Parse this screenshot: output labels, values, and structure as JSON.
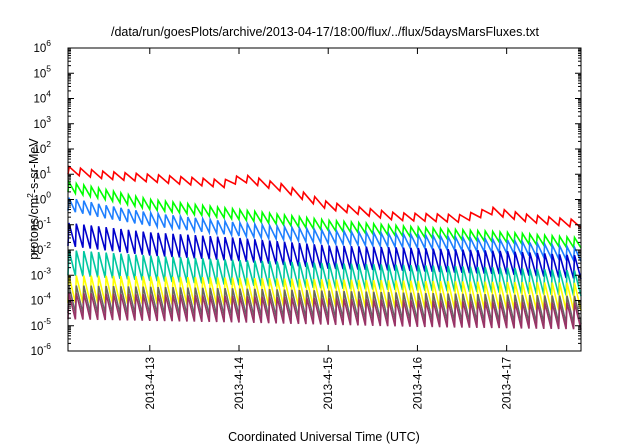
{
  "chart_data": {
    "type": "line",
    "title": "/data/run/goesPlots/archive/2013-04-17/18:00/flux/../flux/5daysMarsFluxes.txt",
    "xlabel": "Coordinated Universal Time (UTC)",
    "ylabel_parts": {
      "base": "protons/cm",
      "sup": "2",
      "rest": "-s-sr-MeV"
    },
    "yscale": "log",
    "ylim": [
      1e-06,
      1000000.0
    ],
    "xlim": [
      "2013-04-12 02:00",
      "2013-04-17 20:00"
    ],
    "grid": false,
    "legend": "none",
    "xticks": [
      {
        "label": "2013-4-13",
        "day": 1
      },
      {
        "label": "2013-4-14",
        "day": 2
      },
      {
        "label": "2013-4-15",
        "day": 3
      },
      {
        "label": "2013-4-16",
        "day": 4
      },
      {
        "label": "2013-4-17",
        "day": 5
      }
    ],
    "yticks": [
      {
        "exp": "-6",
        "value": 1e-06
      },
      {
        "exp": "-5",
        "value": 1e-05
      },
      {
        "exp": "-4",
        "value": 0.0001
      },
      {
        "exp": "-3",
        "value": 0.001
      },
      {
        "exp": "-2",
        "value": 0.01
      },
      {
        "exp": "-1",
        "value": 0.1
      },
      {
        "exp": "0",
        "value": 1
      },
      {
        "exp": "1",
        "value": 10.0
      },
      {
        "exp": "2",
        "value": 100.0
      },
      {
        "exp": "3",
        "value": 1000.0
      },
      {
        "exp": "4",
        "value": 10000.0
      },
      {
        "exp": "5",
        "value": 100000.0
      },
      {
        "exp": "6",
        "value": 1000000.0
      }
    ],
    "series": [
      {
        "color": "#ff0000",
        "sawtooth_period_hours": 3,
        "peak_trend": [
          [
            "2013-04-12 02:00",
            20
          ],
          [
            "2013-04-12 12:00",
            13
          ],
          [
            "2013-04-13 00:00",
            10
          ],
          [
            "2013-04-13 20:00",
            6
          ],
          [
            "2013-04-14 01:00",
            10
          ],
          [
            "2013-04-14 12:00",
            4
          ],
          [
            "2013-04-15 00:00",
            0.8
          ],
          [
            "2013-04-15 18:00",
            0.3
          ],
          [
            "2013-04-16 12:00",
            0.25
          ],
          [
            "2013-04-16 20:00",
            0.5
          ],
          [
            "2013-04-17 06:00",
            0.25
          ],
          [
            "2013-04-17 20:00",
            0.15
          ]
        ],
        "dip_ratio": 0.5
      },
      {
        "color": "#00ff00",
        "sawtooth_period_hours": 2,
        "peak_trend": [
          [
            "2013-04-12 02:00",
            5
          ],
          [
            "2013-04-12 12:00",
            2.5
          ],
          [
            "2013-04-13 00:00",
            1
          ],
          [
            "2013-04-14 00:00",
            0.4
          ],
          [
            "2013-04-15 00:00",
            0.15
          ],
          [
            "2013-04-16 00:00",
            0.08
          ],
          [
            "2013-04-17 00:00",
            0.05
          ],
          [
            "2013-04-17 20:00",
            0.03
          ]
        ],
        "dip_ratio": 0.4
      },
      {
        "color": "#1e7fff",
        "sawtooth_period_hours": 2,
        "peak_trend": [
          [
            "2013-04-12 02:00",
            1.2
          ],
          [
            "2013-04-12 12:00",
            0.6
          ],
          [
            "2013-04-13 00:00",
            0.3
          ],
          [
            "2013-04-14 00:00",
            0.12
          ],
          [
            "2013-04-15 00:00",
            0.06
          ],
          [
            "2013-04-16 00:00",
            0.04
          ],
          [
            "2013-04-17 00:00",
            0.025
          ],
          [
            "2013-04-17 20:00",
            0.012
          ]
        ],
        "dip_ratio": 0.3
      },
      {
        "color": "#0000cc",
        "sawtooth_period_hours": 2,
        "peak_trend": [
          [
            "2013-04-12 02:00",
            0.12
          ],
          [
            "2013-04-13 00:00",
            0.05
          ],
          [
            "2013-04-14 00:00",
            0.03
          ],
          [
            "2013-04-15 00:00",
            0.015
          ],
          [
            "2013-04-16 00:00",
            0.012
          ],
          [
            "2013-04-17 00:00",
            0.009
          ],
          [
            "2013-04-17 20:00",
            0.006
          ]
        ],
        "dip_ratio": 0.12
      },
      {
        "color": "#00c8a0",
        "sawtooth_period_hours": 2,
        "peak_trend": [
          [
            "2013-04-12 02:00",
            0.01
          ],
          [
            "2013-04-13 00:00",
            0.006
          ],
          [
            "2013-04-14 00:00",
            0.004
          ],
          [
            "2013-04-15 00:00",
            0.003
          ],
          [
            "2013-04-16 00:00",
            0.0025
          ],
          [
            "2013-04-17 00:00",
            0.002
          ],
          [
            "2013-04-17 20:00",
            0.0015
          ]
        ],
        "dip_ratio": 0.1
      },
      {
        "color": "#ffff00",
        "sawtooth_period_hours": 2,
        "peak_trend": [
          [
            "2013-04-12 02:00",
            0.001
          ],
          [
            "2013-04-14 00:00",
            0.0008
          ],
          [
            "2013-04-16 00:00",
            0.0006
          ],
          [
            "2013-04-17 20:00",
            0.0005
          ]
        ],
        "dip_ratio": 0.08
      },
      {
        "color": "#666666",
        "sawtooth_period_hours": 2,
        "peak_trend": [
          [
            "2013-04-12 02:00",
            0.0004
          ],
          [
            "2013-04-14 00:00",
            0.0003
          ],
          [
            "2013-04-16 00:00",
            0.0002
          ],
          [
            "2013-04-17 20:00",
            0.00015
          ]
        ],
        "dip_ratio": 0.08
      },
      {
        "color": "#993366",
        "sawtooth_period_hours": 2,
        "peak_trend": [
          [
            "2013-04-12 02:00",
            0.0002
          ],
          [
            "2013-04-14 00:00",
            0.00015
          ],
          [
            "2013-04-16 00:00",
            0.0001
          ],
          [
            "2013-04-17 20:00",
            8e-05
          ]
        ],
        "dip_ratio": 0.09
      }
    ]
  }
}
